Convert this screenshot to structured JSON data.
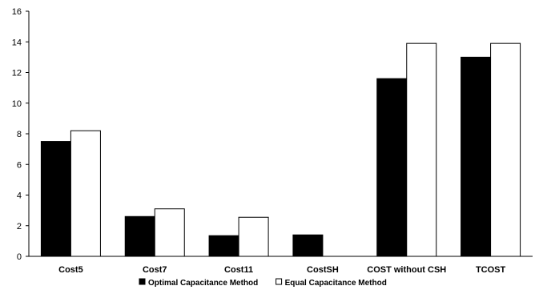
{
  "chart_data": {
    "type": "bar",
    "categories": [
      "Cost5",
      "Cost7",
      "Cost11",
      "CostSH",
      "COST without CSH",
      "TCOST"
    ],
    "series": [
      {
        "name": "Optimal Capacitance Method",
        "values": [
          7.5,
          2.6,
          1.35,
          1.4,
          11.6,
          13.0
        ],
        "color": "#000000"
      },
      {
        "name": "Equal Capacitance Method",
        "values": [
          8.2,
          3.1,
          2.55,
          0,
          13.9,
          13.9
        ],
        "color": "#ffffff"
      }
    ],
    "ylim": [
      0,
      16
    ],
    "yticks": [
      0,
      2,
      4,
      6,
      8,
      10,
      12,
      14,
      16
    ],
    "grid": false,
    "legend_position": "bottom"
  }
}
